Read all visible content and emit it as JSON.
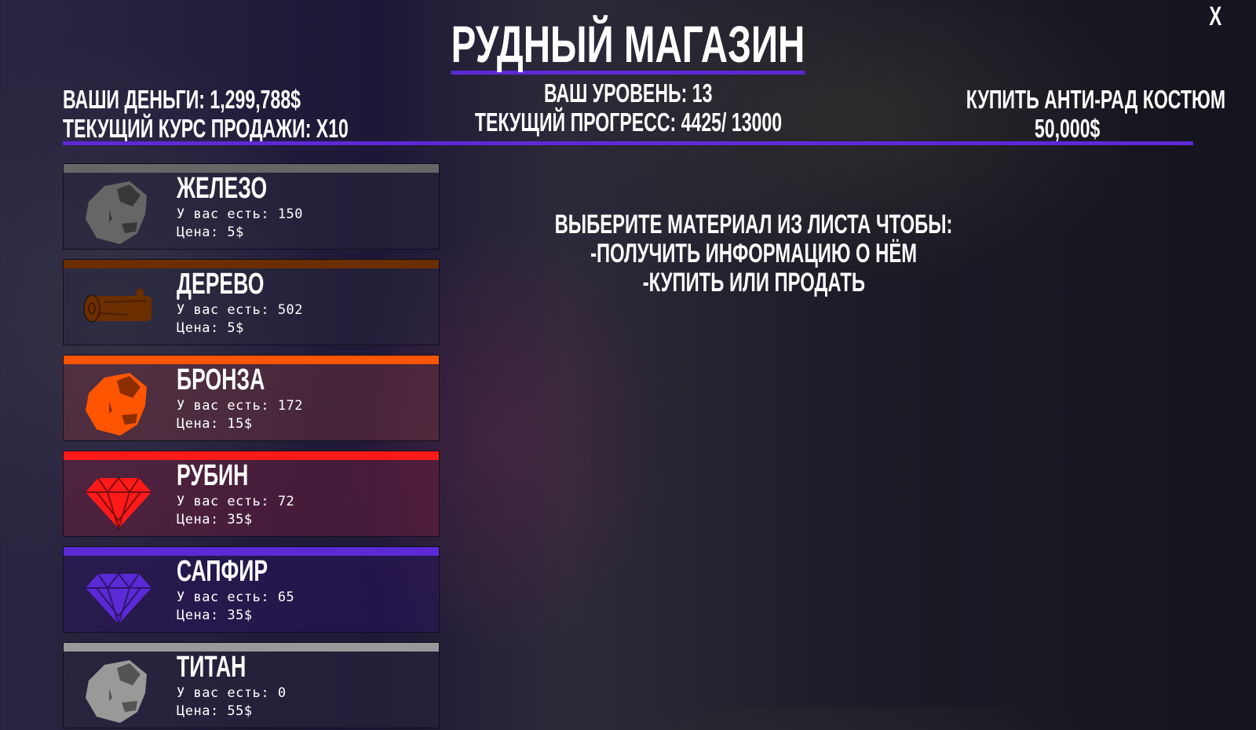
{
  "title": "РУДНЫЙ МАГАЗИН",
  "close_label": "X",
  "money_line": "ВАШИ ДЕНЬГИ: 1,299,788$",
  "rate_line": "ТЕКУЩИЙ КУРС ПРОДАЖИ: X10",
  "level_line": "ВАШ УРОВЕНЬ: 13",
  "progress_line": "ТЕКУЩИЙ ПРОГРЕСС: 4425/ 13000",
  "buy_suit": {
    "label": "КУПИТЬ АНТИ-РАД КОСТЮМ",
    "price": "50,000$"
  },
  "accent_color": "#5b2ad6",
  "materials": [
    {
      "name": "ЖЕЛЕЗО",
      "have": "У вас есть: 150",
      "price": "Цена: 5$",
      "color": "#666666",
      "icon": "ore-icon"
    },
    {
      "name": "ДЕРЕВО",
      "have": "У вас есть: 502",
      "price": "Цена: 5$",
      "color": "#6b2e00",
      "icon": "log-icon"
    },
    {
      "name": "БРОНЗА",
      "have": "У вас есть: 172",
      "price": "Цена: 15$",
      "color": "#ff5500",
      "icon": "ore-icon"
    },
    {
      "name": "РУБИН",
      "have": "У вас есть: 72",
      "price": "Цена: 35$",
      "color": "#ff1a1a",
      "icon": "gem-icon"
    },
    {
      "name": "САПФИР",
      "have": "У вас есть: 65",
      "price": "Цена: 35$",
      "color": "#5b2ad6",
      "icon": "gem-icon"
    },
    {
      "name": "ТИТАН",
      "have": "У вас есть: 0",
      "price": "Цена: 55$",
      "color": "#999999",
      "icon": "ore-icon"
    }
  ],
  "hint": [
    "ВЫБЕРИТЕ МАТЕРИАЛ ИЗ ЛИСТА ЧТОБЫ:",
    "-ПОЛУЧИТЬ ИНФОРМАЦИЮ О НЁМ",
    "-КУПИТЬ ИЛИ ПРОДАТЬ"
  ]
}
